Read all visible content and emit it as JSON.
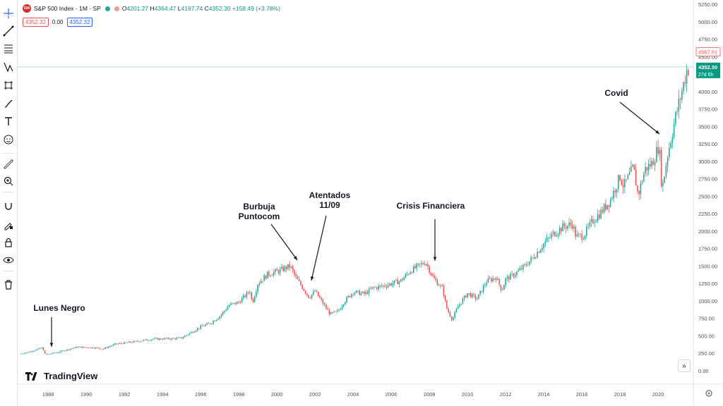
{
  "header": {
    "symbol_badge": "500",
    "title": "S&P 500 Index · 1M · SP",
    "ohlc": {
      "o_label": "O",
      "o": "4201.27",
      "h_label": "H",
      "h": "4364.47",
      "l_label": "L",
      "l": "4197.74",
      "c_label": "C",
      "c": "4352.30",
      "change": "+158.49 (+3.78%)"
    },
    "bid": "4352.32",
    "spread": "0.00",
    "ask": "4352.32"
  },
  "price_axis": {
    "ticks": [
      "5250.00",
      "5000.00",
      "4750.00",
      "4500.00",
      "4250.00",
      "4000.00",
      "3750.00",
      "3500.00",
      "3250.00",
      "3000.00",
      "2750.00",
      "2500.00",
      "2250.00",
      "2000.00",
      "1750.00",
      "1500.00",
      "1250.00",
      "1000.00",
      "750.00",
      "500.00",
      "250.00",
      "0.00"
    ],
    "high_label": "4567.01",
    "last_label": "4352.30",
    "countdown": "27d 6h"
  },
  "time_axis": {
    "ticks": [
      "1988",
      "1990",
      "1992",
      "1994",
      "1996",
      "1998",
      "2000",
      "2002",
      "2004",
      "2006",
      "2008",
      "2010",
      "2012",
      "2014",
      "2016",
      "2018",
      "2020"
    ]
  },
  "annotations": [
    {
      "id": "lunes-negro",
      "lines": [
        "Lunes Negro"
      ]
    },
    {
      "id": "burbuja",
      "lines": [
        "Burbuja",
        "Puntocom"
      ]
    },
    {
      "id": "atentados",
      "lines": [
        "Atentados",
        "11/09"
      ]
    },
    {
      "id": "crisis",
      "lines": [
        "Crisis Financiera"
      ]
    },
    {
      "id": "covid",
      "lines": [
        "Covid"
      ]
    }
  ],
  "branding": {
    "logo_text": "TradingView"
  },
  "colors": {
    "up": "#26a69a",
    "down": "#ef5350",
    "last_price": "#089981",
    "high": "#ef5350",
    "grid": "#f0f3fa"
  },
  "icons": [
    "crosshair-icon",
    "trend-line-icon",
    "fib-icon",
    "pattern-icon",
    "measure-icon",
    "brush-icon",
    "text-icon",
    "emoji-icon",
    "ruler-icon",
    "zoom-icon",
    "magnet-icon",
    "lock-drawings-icon",
    "lock-icon",
    "eye-icon",
    "trash-icon"
  ],
  "chart_data": {
    "type": "candlestick",
    "interval": "1M",
    "xlim": [
      1986.4,
      2021.7
    ],
    "ylim": [
      0,
      5250
    ],
    "keypoints": [
      [
        1986.5,
        240
      ],
      [
        1987.0,
        270
      ],
      [
        1987.7,
        330
      ],
      [
        1987.85,
        230
      ],
      [
        1988.5,
        265
      ],
      [
        1989.5,
        340
      ],
      [
        1990.5,
        330
      ],
      [
        1990.85,
        310
      ],
      [
        1991.5,
        380
      ],
      [
        1992.5,
        415
      ],
      [
        1993.5,
        455
      ],
      [
        1994.5,
        460
      ],
      [
        1995.0,
        470
      ],
      [
        1995.5,
        550
      ],
      [
        1996.0,
        630
      ],
      [
        1996.5,
        680
      ],
      [
        1997.0,
        780
      ],
      [
        1997.5,
        940
      ],
      [
        1998.0,
        980
      ],
      [
        1998.6,
        1150
      ],
      [
        1998.7,
        960
      ],
      [
        1999.0,
        1250
      ],
      [
        1999.5,
        1380
      ],
      [
        2000.0,
        1420
      ],
      [
        2000.7,
        1500
      ],
      [
        2001.0,
        1330
      ],
      [
        2001.7,
        1050
      ],
      [
        2002.0,
        1140
      ],
      [
        2002.5,
        930
      ],
      [
        2002.8,
        810
      ],
      [
        2003.2,
        850
      ],
      [
        2003.5,
        980
      ],
      [
        2004.0,
        1130
      ],
      [
        2004.6,
        1100
      ],
      [
        2005.0,
        1180
      ],
      [
        2005.8,
        1230
      ],
      [
        2006.5,
        1290
      ],
      [
        2007.0,
        1430
      ],
      [
        2007.8,
        1560
      ],
      [
        2008.2,
        1330
      ],
      [
        2008.7,
        1170
      ],
      [
        2008.9,
        900
      ],
      [
        2009.2,
        730
      ],
      [
        2009.5,
        920
      ],
      [
        2010.0,
        1110
      ],
      [
        2010.5,
        1030
      ],
      [
        2011.0,
        1280
      ],
      [
        2011.5,
        1340
      ],
      [
        2011.8,
        1150
      ],
      [
        2012.0,
        1310
      ],
      [
        2012.5,
        1390
      ],
      [
        2013.0,
        1500
      ],
      [
        2013.5,
        1640
      ],
      [
        2014.0,
        1820
      ],
      [
        2014.5,
        1960
      ],
      [
        2015.0,
        2060
      ],
      [
        2015.5,
        2100
      ],
      [
        2015.7,
        1920
      ],
      [
        2016.1,
        1940
      ],
      [
        2016.6,
        2160
      ],
      [
        2017.0,
        2270
      ],
      [
        2017.5,
        2450
      ],
      [
        2018.0,
        2780
      ],
      [
        2018.2,
        2640
      ],
      [
        2018.7,
        2910
      ],
      [
        2018.95,
        2510
      ],
      [
        2019.3,
        2880
      ],
      [
        2019.7,
        2980
      ],
      [
        2020.05,
        3230
      ],
      [
        2020.2,
        2580
      ],
      [
        2020.5,
        3100
      ],
      [
        2020.9,
        3620
      ],
      [
        2021.2,
        3950
      ],
      [
        2021.5,
        4300
      ],
      [
        2021.65,
        4352
      ]
    ],
    "last_price": 4352.3,
    "high_line": 4567.01,
    "countdown": "27d 6h"
  }
}
